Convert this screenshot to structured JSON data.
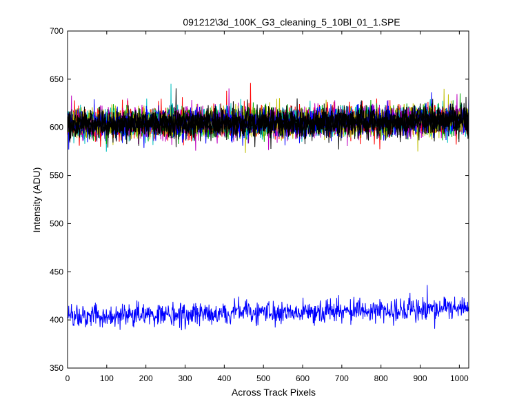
{
  "chart_data": {
    "type": "line",
    "title": "091212\\3d_100K_G3_cleaning_5_10Bl_01_1.SPE",
    "xlabel": "Across Track Pixels",
    "ylabel": "Intensity (ADU)",
    "xlim": [
      0,
      1024
    ],
    "ylim": [
      350,
      700
    ],
    "xticks": [
      0,
      100,
      200,
      300,
      400,
      500,
      600,
      700,
      800,
      900,
      1000
    ],
    "yticks": [
      350,
      400,
      450,
      500,
      550,
      600,
      650,
      700
    ],
    "grid": false,
    "legend": "none",
    "x": {
      "start": 1,
      "end": 1024,
      "step": 1
    },
    "series": [
      {
        "role": "upper noisy band (many overlapping traces)",
        "colors": [
          "#000000",
          "#ff0000",
          "#00aa00",
          "#00bfbf",
          "#bf00bf",
          "#bfbf00",
          "#0000ff"
        ],
        "trend_x": [
          0,
          200,
          400,
          600,
          800,
          1024
        ],
        "trend_y": [
          603,
          604,
          605,
          605,
          606,
          608
        ],
        "spread_min": 585,
        "spread_max": 630,
        "peak_max": 652,
        "trough_min": 573
      },
      {
        "role": "lower noisy trace",
        "color": "#0000ff",
        "trend_x": [
          0,
          200,
          400,
          600,
          800,
          1024
        ],
        "trend_y": [
          403,
          405,
          407,
          408,
          410,
          413
        ],
        "spread_min": 395,
        "spread_max": 425,
        "peak_max": 443,
        "trough_min": 386
      }
    ]
  }
}
